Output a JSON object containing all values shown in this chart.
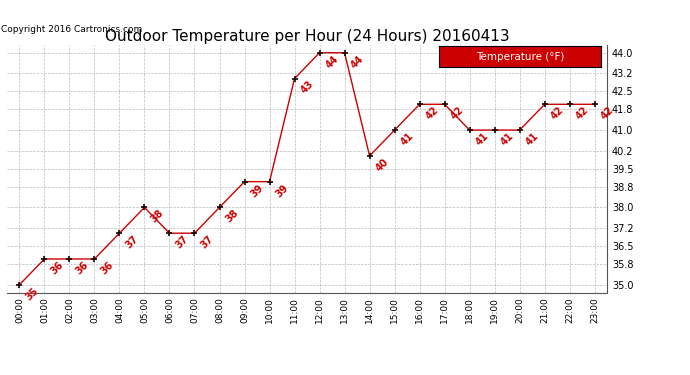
{
  "title": "Outdoor Temperature per Hour (24 Hours) 20160413",
  "copyright": "Copyright 2016 Cartronics.com",
  "legend_label": "Temperature (°F)",
  "hours": [
    0,
    1,
    2,
    3,
    4,
    5,
    6,
    7,
    8,
    9,
    10,
    11,
    12,
    13,
    14,
    15,
    16,
    17,
    18,
    19,
    20,
    21,
    22,
    23
  ],
  "temps": [
    35,
    36,
    36,
    36,
    37,
    38,
    37,
    37,
    38,
    39,
    39,
    43,
    44,
    44,
    40,
    41,
    42,
    42,
    41,
    41,
    41,
    42,
    42,
    42
  ],
  "x_labels": [
    "00:00",
    "01:00",
    "02:00",
    "03:00",
    "04:00",
    "05:00",
    "06:00",
    "07:00",
    "08:00",
    "09:00",
    "10:00",
    "11:00",
    "12:00",
    "13:00",
    "14:00",
    "15:00",
    "16:00",
    "17:00",
    "18:00",
    "19:00",
    "20:00",
    "21:00",
    "22:00",
    "23:00"
  ],
  "y_ticks": [
    35.0,
    35.8,
    36.5,
    37.2,
    38.0,
    38.8,
    39.5,
    40.2,
    41.0,
    41.8,
    42.5,
    43.2,
    44.0
  ],
  "ylim": [
    34.7,
    44.3
  ],
  "line_color": "#cc0000",
  "marker_color": "#1a0000",
  "bg_color": "#ffffff",
  "grid_color": "#bbbbbb",
  "title_fontsize": 11,
  "annot_fontsize": 7,
  "legend_bg": "#cc0000",
  "legend_fg": "#ffffff",
  "copyright_fontsize": 6.5
}
